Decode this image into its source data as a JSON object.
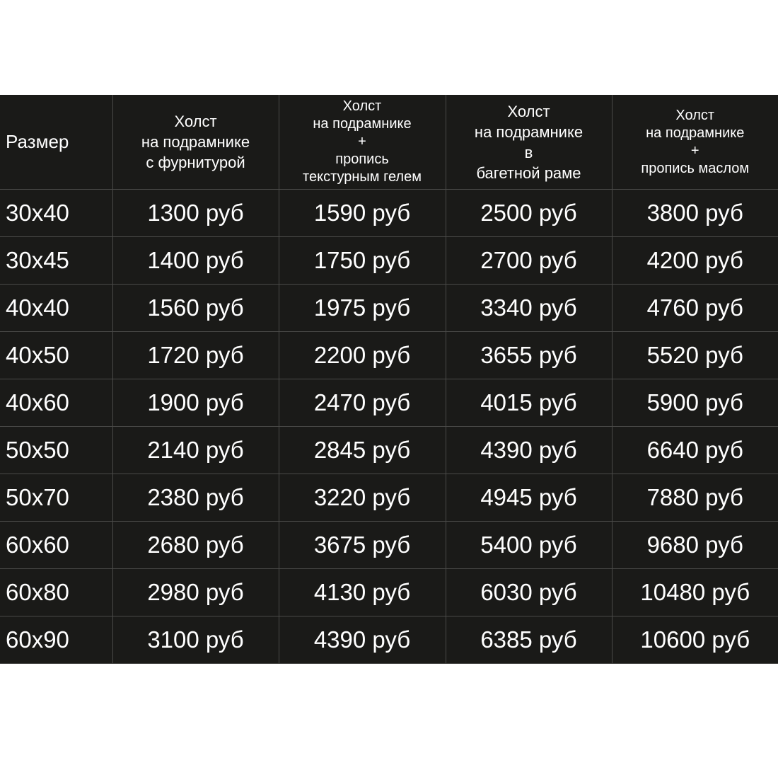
{
  "table": {
    "headers": [
      {
        "lines": [
          "Размер"
        ]
      },
      {
        "lines": [
          "Холст",
          "на подрамнике",
          "с фурнитурой"
        ]
      },
      {
        "lines": [
          "Холст",
          "на подрамнике",
          "+",
          "пропись",
          "текстурным гелем"
        ]
      },
      {
        "lines": [
          "Холст",
          "на подрамнике",
          "в",
          "багетной раме"
        ]
      },
      {
        "lines": [
          "Холст",
          "на подрамнике",
          "+",
          "пропись маслом"
        ]
      }
    ],
    "rows": [
      [
        "30x40",
        "1300 руб",
        "1590 руб",
        "2500 руб",
        "3800 руб"
      ],
      [
        "30x45",
        "1400 руб",
        "1750 руб",
        "2700 руб",
        "4200 руб"
      ],
      [
        "40x40",
        "1560 руб",
        "1975 руб",
        "3340 руб",
        "4760 руб"
      ],
      [
        "40x50",
        "1720 руб",
        "2200 руб",
        "3655 руб",
        "5520 руб"
      ],
      [
        "40x60",
        "1900 руб",
        "2470 руб",
        "4015 руб",
        "5900 руб"
      ],
      [
        "50x50",
        "2140 руб",
        "2845 руб",
        "4390 руб",
        "6640 руб"
      ],
      [
        "50x70",
        "2380 руб",
        "3220 руб",
        "4945 руб",
        "7880 руб"
      ],
      [
        "60x60",
        "2680 руб",
        "3675 руб",
        "5400 руб",
        "9680 руб"
      ],
      [
        "60x80",
        "2980 руб",
        "4130 руб",
        "6030 руб",
        "10480 руб"
      ],
      [
        "60x90",
        "3100 руб",
        "4390 руб",
        "6385 руб",
        "10600 руб"
      ]
    ]
  },
  "colors": {
    "background": "#1a1a18",
    "text": "#ffffff",
    "grid": "#4a4a48"
  }
}
